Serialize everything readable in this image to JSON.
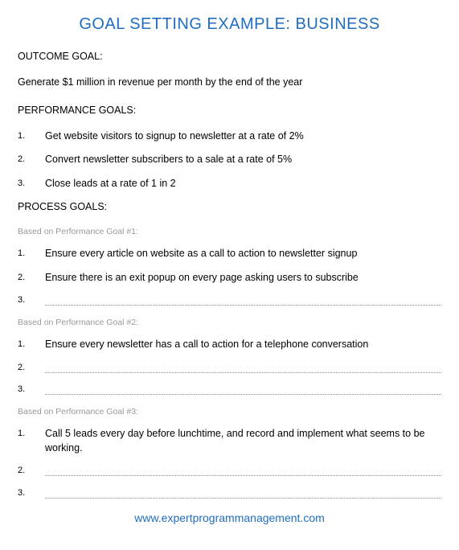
{
  "title": "GOAL SETTING EXAMPLE: BUSINESS",
  "colors": {
    "title_color": "#1f6dc2",
    "text_color": "#000000",
    "sub_heading_color": "#999999",
    "background": "#ffffff",
    "footer_color": "#1f6dc2",
    "dotted_line_color": "#888888"
  },
  "typography": {
    "title_fontsize": 20,
    "body_fontsize": 12.5,
    "sub_heading_fontsize": 10.5,
    "footer_fontsize": 14,
    "item_num_fontsize": 11,
    "font_family": "Arial"
  },
  "outcome": {
    "heading": "OUTCOME GOAL:",
    "text": "Generate $1 million in revenue per month by the end of the year"
  },
  "performance": {
    "heading": "PERFORMANCE GOALS:",
    "items": [
      {
        "num": "1.",
        "text": "Get website visitors to signup to newsletter at a rate of 2%"
      },
      {
        "num": "2.",
        "text": "Convert newsletter subscribers to a sale at a rate of 5%"
      },
      {
        "num": "3.",
        "text": "Close leads at a rate of 1 in 2"
      }
    ]
  },
  "process": {
    "heading": "PROCESS GOALS:",
    "groups": [
      {
        "sub_heading": "Based on Performance Goal #1:",
        "items": [
          {
            "num": "1.",
            "text": "Ensure every article on website as a call to action to newsletter signup",
            "blank": false
          },
          {
            "num": "2.",
            "text": "Ensure there is an exit popup on every page asking users to subscribe",
            "blank": false
          },
          {
            "num": "3.",
            "text": "",
            "blank": true
          }
        ]
      },
      {
        "sub_heading": "Based on Performance Goal #2:",
        "items": [
          {
            "num": "1.",
            "text": "Ensure every newsletter has a call to action for a telephone conversation",
            "blank": false
          },
          {
            "num": "2.",
            "text": "",
            "blank": true
          },
          {
            "num": "3.",
            "text": "",
            "blank": true
          }
        ]
      },
      {
        "sub_heading": "Based on Performance Goal #3:",
        "items": [
          {
            "num": "1.",
            "text": "Call 5 leads every day before lunchtime, and record and implement what seems to be working.",
            "blank": false
          },
          {
            "num": "2.",
            "text": "",
            "blank": true
          },
          {
            "num": "3.",
            "text": "",
            "blank": true
          }
        ]
      }
    ]
  },
  "footer": "www.expertprogrammanagement.com"
}
